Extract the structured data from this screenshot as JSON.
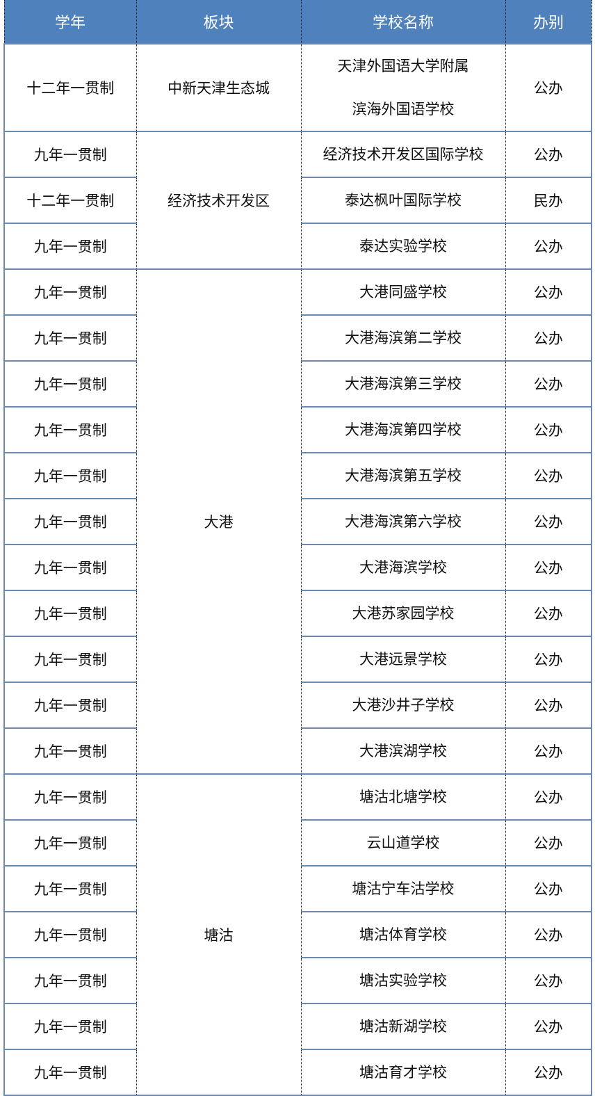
{
  "header": {
    "year": "学年",
    "region": "板块",
    "school": "学校名称",
    "type": "办别"
  },
  "colors": {
    "header_bg": "#4f81bd",
    "row_border": "#6b88b3"
  },
  "groups": [
    {
      "region": "中新天津生态城",
      "rows": [
        {
          "year": "十二年一贯制",
          "school": [
            "天津外国语大学附属",
            "滨海外国语学校"
          ],
          "type": "公办"
        }
      ]
    },
    {
      "region": "经济技术开发区",
      "rows": [
        {
          "year": "九年一贯制",
          "school": [
            "经济技术开发区国际学校"
          ],
          "type": "公办"
        },
        {
          "year": "十二年一贯制",
          "school": [
            "泰达枫叶国际学校"
          ],
          "type": "民办"
        },
        {
          "year": "九年一贯制",
          "school": [
            "泰达实验学校"
          ],
          "type": "公办"
        }
      ]
    },
    {
      "region": "大港",
      "rows": [
        {
          "year": "九年一贯制",
          "school": [
            "大港同盛学校"
          ],
          "type": "公办"
        },
        {
          "year": "九年一贯制",
          "school": [
            "大港海滨第二学校"
          ],
          "type": "公办"
        },
        {
          "year": "九年一贯制",
          "school": [
            "大港海滨第三学校"
          ],
          "type": "公办"
        },
        {
          "year": "九年一贯制",
          "school": [
            "大港海滨第四学校"
          ],
          "type": "公办"
        },
        {
          "year": "九年一贯制",
          "school": [
            "大港海滨第五学校"
          ],
          "type": "公办"
        },
        {
          "year": "九年一贯制",
          "school": [
            "大港海滨第六学校"
          ],
          "type": "公办"
        },
        {
          "year": "九年一贯制",
          "school": [
            "大港海滨学校"
          ],
          "type": "公办"
        },
        {
          "year": "九年一贯制",
          "school": [
            "大港苏家园学校"
          ],
          "type": "公办"
        },
        {
          "year": "九年一贯制",
          "school": [
            "大港远景学校"
          ],
          "type": "公办"
        },
        {
          "year": "九年一贯制",
          "school": [
            "大港沙井子学校"
          ],
          "type": "公办"
        },
        {
          "year": "九年一贯制",
          "school": [
            "大港滨湖学校"
          ],
          "type": "公办"
        }
      ]
    },
    {
      "region": "塘沽",
      "rows": [
        {
          "year": "九年一贯制",
          "school": [
            "塘沽北塘学校"
          ],
          "type": "公办"
        },
        {
          "year": "九年一贯制",
          "school": [
            "云山道学校"
          ],
          "type": "公办"
        },
        {
          "year": "九年一贯制",
          "school": [
            "塘沽宁车沽学校"
          ],
          "type": "公办"
        },
        {
          "year": "九年一贯制",
          "school": [
            "塘沽体育学校"
          ],
          "type": "公办"
        },
        {
          "year": "九年一贯制",
          "school": [
            "塘沽实验学校"
          ],
          "type": "公办"
        },
        {
          "year": "九年一贯制",
          "school": [
            "塘沽新湖学校"
          ],
          "type": "公办"
        },
        {
          "year": "九年一贯制",
          "school": [
            "塘沽育才学校"
          ],
          "type": "公办"
        }
      ]
    }
  ]
}
